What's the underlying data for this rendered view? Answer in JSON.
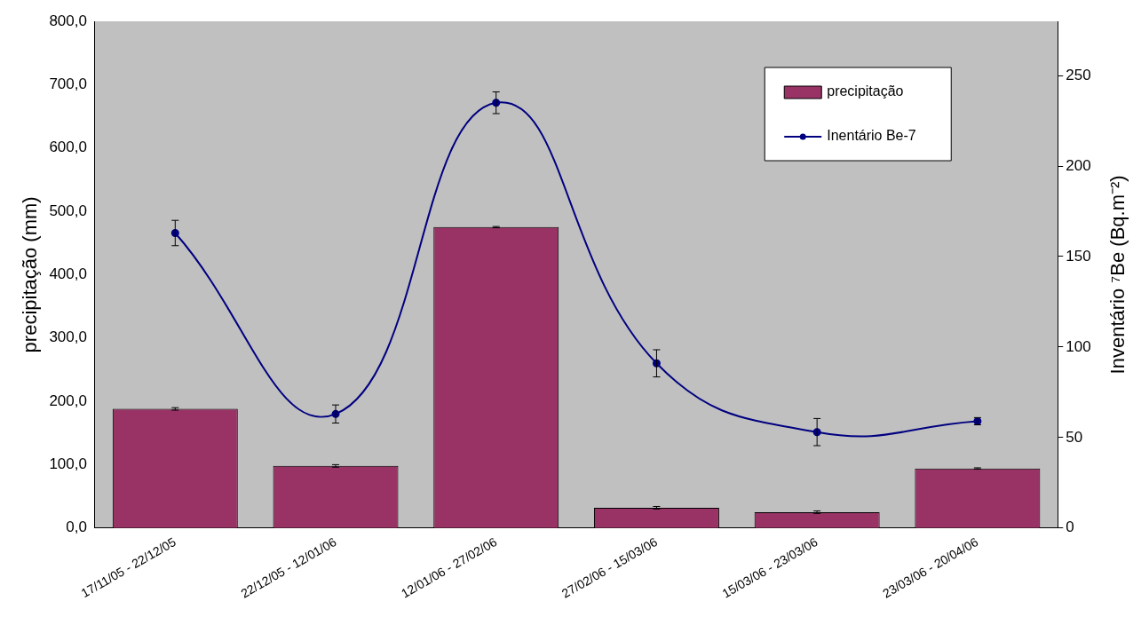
{
  "chart_data": {
    "type": "bar",
    "ylabel": "precipitação (mm)",
    "y2label": "Inventário ⁷Be (Bq.m⁻²)",
    "categories": [
      "17/11/05 - 22/12/05",
      "22/12/05 - 12/01/06",
      "12/01/06 - 27/02/06",
      "27/02/06 - 15/03/06",
      "15/03/06 - 23/03/06",
      "23/03/06 - 20/04/06"
    ],
    "series": [
      {
        "name": "precipitação",
        "color": "#993366",
        "values": [
          188,
          98,
          475,
          32,
          25,
          94
        ],
        "errors": [
          2,
          2,
          1,
          2,
          2,
          1
        ]
      },
      {
        "name": "Inentário Be-7",
        "type": "line",
        "axis": "y2",
        "color": "#000080",
        "values": [
          163,
          63,
          235,
          91,
          53,
          59
        ],
        "errors": [
          7,
          5,
          6,
          7.5,
          7.5,
          2
        ]
      }
    ],
    "ylim": [
      0,
      800
    ],
    "yticks": [
      {
        "value": 0,
        "label": "0,0"
      },
      {
        "value": 100,
        "label": "100,0"
      },
      {
        "value": 200,
        "label": "200,0"
      },
      {
        "value": 300,
        "label": "300,0"
      },
      {
        "value": 400,
        "label": "400,0"
      },
      {
        "value": 500,
        "label": "500,0"
      },
      {
        "value": 600,
        "label": "600,0"
      },
      {
        "value": 700,
        "label": "700,0"
      },
      {
        "value": 800,
        "label": "800,0"
      }
    ],
    "y2lim": [
      0,
      280
    ],
    "y2ticks": [
      0,
      50,
      100,
      150,
      200,
      250
    ],
    "grid": false,
    "legend": "top right",
    "marker": "circle"
  }
}
